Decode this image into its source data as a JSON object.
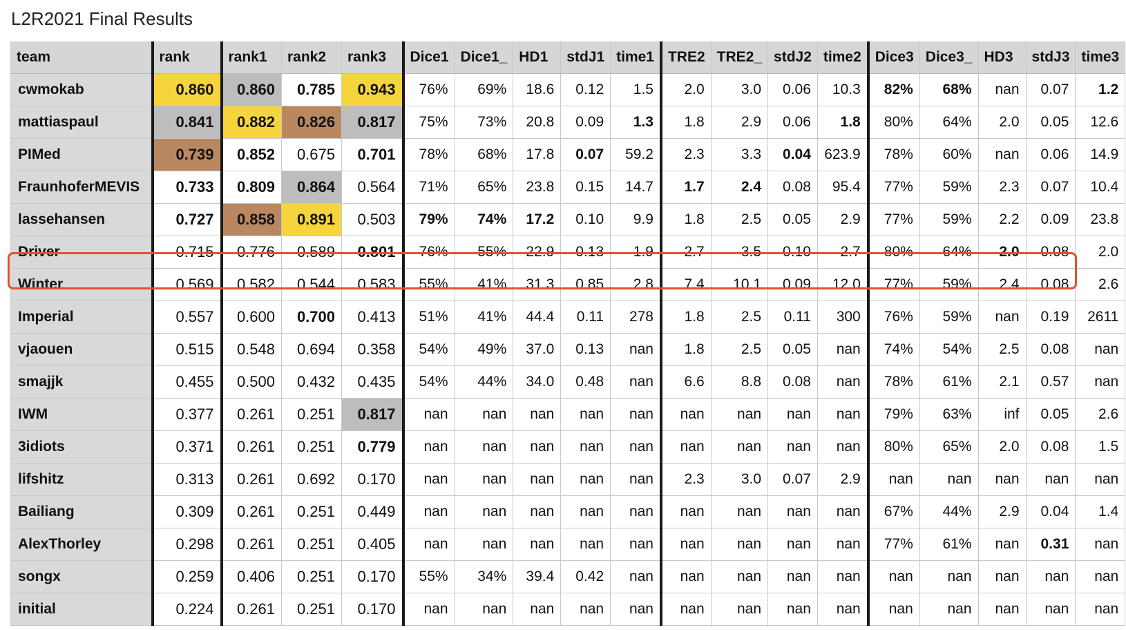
{
  "title": "L2R2021 Final Results",
  "columns": [
    "team",
    "rank",
    "rank1",
    "rank2",
    "rank3",
    "Dice1",
    "Dice1_",
    "HD1",
    "stdJ1",
    "time1",
    "TRE2",
    "TRE2_",
    "stdJ2",
    "time2",
    "Dice3",
    "Dice3_",
    "HD3",
    "stdJ3",
    "time3"
  ],
  "rows": [
    {
      "cells": [
        "cwmokab",
        "0.860",
        "0.860",
        "0.785",
        "0.943",
        "76%",
        "69%",
        "18.6",
        "0.12",
        "1.5",
        "2.0",
        "3.0",
        "0.06",
        "10.3",
        "82%",
        "68%",
        "nan",
        "0.07",
        "1.2"
      ],
      "bold": [
        1,
        2,
        3,
        4,
        14,
        15,
        18
      ],
      "medals": {
        "1": "gold",
        "2": "silver",
        "4": "gold"
      }
    },
    {
      "cells": [
        "mattiaspaul",
        "0.841",
        "0.882",
        "0.826",
        "0.817",
        "75%",
        "73%",
        "20.8",
        "0.09",
        "1.3",
        "1.8",
        "2.9",
        "0.06",
        "1.8",
        "80%",
        "64%",
        "2.0",
        "0.05",
        "12.6"
      ],
      "bold": [
        1,
        2,
        3,
        4,
        9,
        13
      ],
      "medals": {
        "1": "silver",
        "2": "gold",
        "3": "bronze",
        "4": "silver"
      }
    },
    {
      "cells": [
        "PIMed",
        "0.739",
        "0.852",
        "0.675",
        "0.701",
        "78%",
        "68%",
        "17.8",
        "0.07",
        "59.2",
        "2.3",
        "3.3",
        "0.04",
        "623.9",
        "78%",
        "60%",
        "nan",
        "0.06",
        "14.9"
      ],
      "bold": [
        1,
        2,
        4,
        8,
        12
      ],
      "medals": {
        "1": "bronze"
      }
    },
    {
      "cells": [
        "FraunhoferMEVIS",
        "0.733",
        "0.809",
        "0.864",
        "0.564",
        "71%",
        "65%",
        "23.8",
        "0.15",
        "14.7",
        "1.7",
        "2.4",
        "0.08",
        "95.4",
        "77%",
        "59%",
        "2.3",
        "0.07",
        "10.4"
      ],
      "bold": [
        1,
        2,
        3,
        10,
        11
      ],
      "medals": {
        "3": "silver"
      }
    },
    {
      "cells": [
        "lassehansen",
        "0.727",
        "0.858",
        "0.891",
        "0.503",
        "79%",
        "74%",
        "17.2",
        "0.10",
        "9.9",
        "1.8",
        "2.5",
        "0.05",
        "2.9",
        "77%",
        "59%",
        "2.2",
        "0.09",
        "23.8"
      ],
      "bold": [
        1,
        2,
        3,
        5,
        6,
        7
      ],
      "medals": {
        "2": "bronze",
        "3": "gold"
      }
    },
    {
      "cells": [
        "Driver",
        "0.715",
        "0.776",
        "0.589",
        "0.801",
        "76%",
        "55%",
        "22.9",
        "0.13",
        "1.9",
        "2.7",
        "3.5",
        "0.10",
        "2.7",
        "80%",
        "64%",
        "2.0",
        "0.08",
        "2.0"
      ],
      "bold": [
        4,
        16
      ],
      "medals": {}
    },
    {
      "cells": [
        "Winter",
        "0.569",
        "0.582",
        "0.544",
        "0.583",
        "55%",
        "41%",
        "31.3",
        "0.85",
        "2.8",
        "7.4",
        "10.1",
        "0.09",
        "12.0",
        "77%",
        "59%",
        "2.4",
        "0.08",
        "2.6"
      ],
      "bold": [],
      "medals": {}
    },
    {
      "cells": [
        "Imperial",
        "0.557",
        "0.600",
        "0.700",
        "0.413",
        "51%",
        "41%",
        "44.4",
        "0.11",
        "278",
        "1.8",
        "2.5",
        "0.11",
        "300",
        "76%",
        "59%",
        "nan",
        "0.19",
        "2611"
      ],
      "bold": [
        3
      ],
      "medals": {}
    },
    {
      "cells": [
        "vjaouen",
        "0.515",
        "0.548",
        "0.694",
        "0.358",
        "54%",
        "49%",
        "37.0",
        "0.13",
        "nan",
        "1.8",
        "2.5",
        "0.05",
        "nan",
        "74%",
        "54%",
        "2.5",
        "0.08",
        "nan"
      ],
      "bold": [],
      "medals": {}
    },
    {
      "cells": [
        "smajjk",
        "0.455",
        "0.500",
        "0.432",
        "0.435",
        "54%",
        "44%",
        "34.0",
        "0.48",
        "nan",
        "6.6",
        "8.8",
        "0.08",
        "nan",
        "78%",
        "61%",
        "2.1",
        "0.57",
        "nan"
      ],
      "bold": [],
      "medals": {}
    },
    {
      "cells": [
        "IWM",
        "0.377",
        "0.261",
        "0.251",
        "0.817",
        "nan",
        "nan",
        "nan",
        "nan",
        "nan",
        "nan",
        "nan",
        "nan",
        "nan",
        "79%",
        "63%",
        "inf",
        "0.05",
        "2.6"
      ],
      "bold": [
        4
      ],
      "medals": {
        "4": "silver"
      }
    },
    {
      "cells": [
        "3idiots",
        "0.371",
        "0.261",
        "0.251",
        "0.779",
        "nan",
        "nan",
        "nan",
        "nan",
        "nan",
        "nan",
        "nan",
        "nan",
        "nan",
        "80%",
        "65%",
        "2.0",
        "0.08",
        "1.5"
      ],
      "bold": [
        4
      ],
      "medals": {}
    },
    {
      "cells": [
        "lifshitz",
        "0.313",
        "0.261",
        "0.692",
        "0.170",
        "nan",
        "nan",
        "nan",
        "nan",
        "nan",
        "2.3",
        "3.0",
        "0.07",
        "2.9",
        "nan",
        "nan",
        "nan",
        "nan",
        "nan"
      ],
      "bold": [],
      "medals": {}
    },
    {
      "cells": [
        "Bailiang",
        "0.309",
        "0.261",
        "0.251",
        "0.449",
        "nan",
        "nan",
        "nan",
        "nan",
        "nan",
        "nan",
        "nan",
        "nan",
        "nan",
        "67%",
        "44%",
        "2.9",
        "0.04",
        "1.4"
      ],
      "bold": [],
      "medals": {}
    },
    {
      "cells": [
        "AlexThorley",
        "0.298",
        "0.261",
        "0.251",
        "0.405",
        "nan",
        "nan",
        "nan",
        "nan",
        "nan",
        "nan",
        "nan",
        "nan",
        "nan",
        "77%",
        "61%",
        "nan",
        "0.31",
        "nan"
      ],
      "bold": [
        17
      ],
      "medals": {}
    },
    {
      "cells": [
        "songx",
        "0.259",
        "0.406",
        "0.251",
        "0.170",
        "55%",
        "34%",
        "39.4",
        "0.42",
        "nan",
        "nan",
        "nan",
        "nan",
        "nan",
        "nan",
        "nan",
        "nan",
        "nan",
        "nan"
      ],
      "bold": [],
      "medals": {}
    },
    {
      "cells": [
        "initial",
        "0.224",
        "0.261",
        "0.251",
        "0.170",
        "nan",
        "nan",
        "nan",
        "nan",
        "nan",
        "nan",
        "nan",
        "nan",
        "nan",
        "nan",
        "nan",
        "nan",
        "nan",
        "nan"
      ],
      "bold": [],
      "medals": {}
    }
  ],
  "highlighted_team": "Winter",
  "colors": {
    "gold": "#f6d53c",
    "silver": "#bdbdbd",
    "bronze": "#b98860",
    "highlight": "#e3522c",
    "header": "#d6d6d6"
  }
}
